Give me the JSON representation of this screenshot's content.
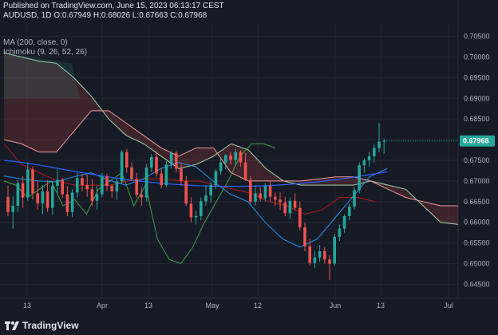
{
  "header": {
    "published": "Published on TradingView.com, June 15, 2023 06:13:17 CEST",
    "symbol": "AUDUSD, 1D",
    "o_label": "O:",
    "o": "0.67949",
    "h_label": "H:",
    "h": "0.68026",
    "l_label": "L:",
    "l": "0.67663",
    "c_label": "C:",
    "c": "0.67968"
  },
  "indicators": [
    "MA (200, close, 0)",
    "Ichimoku (9, 26, 52, 26)"
  ],
  "logo": {
    "text": "TradingView"
  },
  "colors": {
    "background": "#161a25",
    "up": "#26a69a",
    "down": "#ef5350",
    "ma": "#2962ff",
    "tenkan": "#2196f3",
    "kijun": "#b71c1c",
    "chikou": "#43a047",
    "span_a": "#a5d6a7",
    "span_b": "#ef9a9a",
    "price_label_bg": "#26a69a"
  },
  "chart_data": {
    "type": "candlestick",
    "symbol": "AUDUSD",
    "interval": "1D",
    "ylim": [
      0.642,
      0.708
    ],
    "yticks": [
      "0.70500",
      "0.70000",
      "0.69500",
      "0.69000",
      "0.68500",
      "0.68000",
      "0.67500",
      "0.67000",
      "0.66500",
      "0.66000",
      "0.65500",
      "0.65000",
      "0.64500"
    ],
    "xticks": [
      "13",
      "Apr",
      "13",
      "May",
      "12",
      "Jun",
      "13",
      "Jul"
    ],
    "current_price_label": "0.67968",
    "current_price": 0.67968,
    "candles": [
      [
        0.6661,
        0.6689,
        0.6615,
        0.6625
      ],
      [
        0.6625,
        0.6662,
        0.6585,
        0.664
      ],
      [
        0.664,
        0.6702,
        0.6625,
        0.6695
      ],
      [
        0.6695,
        0.6712,
        0.6635,
        0.666
      ],
      [
        0.666,
        0.6745,
        0.6652,
        0.6728
      ],
      [
        0.6728,
        0.6735,
        0.6655,
        0.667
      ],
      [
        0.667,
        0.67,
        0.663,
        0.6646
      ],
      [
        0.6646,
        0.669,
        0.662,
        0.6675
      ],
      [
        0.6675,
        0.6702,
        0.6625,
        0.6635
      ],
      [
        0.6635,
        0.67,
        0.6618,
        0.6688
      ],
      [
        0.6688,
        0.6728,
        0.6672,
        0.6703
      ],
      [
        0.6703,
        0.6708,
        0.666,
        0.6668
      ],
      [
        0.6668,
        0.6688,
        0.6615,
        0.6625
      ],
      [
        0.6625,
        0.668,
        0.6612,
        0.6672
      ],
      [
        0.6672,
        0.672,
        0.666,
        0.6707
      ],
      [
        0.6707,
        0.6717,
        0.6675,
        0.669
      ],
      [
        0.669,
        0.6716,
        0.6662,
        0.668
      ],
      [
        0.668,
        0.6705,
        0.664,
        0.6652
      ],
      [
        0.6652,
        0.6688,
        0.663,
        0.6668
      ],
      [
        0.6668,
        0.672,
        0.666,
        0.6711
      ],
      [
        0.6711,
        0.6718,
        0.6675,
        0.6688
      ],
      [
        0.6688,
        0.6692,
        0.666,
        0.6675
      ],
      [
        0.6675,
        0.6705,
        0.6655,
        0.6699
      ],
      [
        0.6699,
        0.6775,
        0.6692,
        0.677
      ],
      [
        0.677,
        0.6778,
        0.672,
        0.6733
      ],
      [
        0.6733,
        0.6745,
        0.67,
        0.6705
      ],
      [
        0.6705,
        0.672,
        0.666,
        0.6667
      ],
      [
        0.6667,
        0.6685,
        0.664,
        0.666
      ],
      [
        0.666,
        0.6742,
        0.665,
        0.6732
      ],
      [
        0.6732,
        0.6765,
        0.6722,
        0.6758
      ],
      [
        0.6758,
        0.6772,
        0.671,
        0.6718
      ],
      [
        0.6718,
        0.673,
        0.6682,
        0.669
      ],
      [
        0.669,
        0.6748,
        0.6685,
        0.674
      ],
      [
        0.674,
        0.6772,
        0.673,
        0.6768
      ],
      [
        0.6768,
        0.6772,
        0.672,
        0.673
      ],
      [
        0.673,
        0.6742,
        0.669,
        0.67
      ],
      [
        0.67,
        0.6712,
        0.664,
        0.6645
      ],
      [
        0.6645,
        0.666,
        0.66,
        0.6612
      ],
      [
        0.6612,
        0.6628,
        0.6595,
        0.6615
      ],
      [
        0.6615,
        0.666,
        0.6605,
        0.6651
      ],
      [
        0.6651,
        0.669,
        0.664,
        0.6665
      ],
      [
        0.6665,
        0.6698,
        0.6648,
        0.669
      ],
      [
        0.669,
        0.6728,
        0.668,
        0.6724
      ],
      [
        0.6724,
        0.6758,
        0.6715,
        0.6745
      ],
      [
        0.6745,
        0.6765,
        0.6728,
        0.6762
      ],
      [
        0.6762,
        0.677,
        0.674,
        0.6751
      ],
      [
        0.6751,
        0.6778,
        0.674,
        0.677
      ],
      [
        0.677,
        0.6775,
        0.6735,
        0.6745
      ],
      [
        0.6745,
        0.6768,
        0.67,
        0.6702
      ],
      [
        0.6702,
        0.6712,
        0.6645,
        0.665
      ],
      [
        0.665,
        0.669,
        0.664,
        0.667
      ],
      [
        0.667,
        0.6685,
        0.665,
        0.6658
      ],
      [
        0.6658,
        0.6695,
        0.665,
        0.6688
      ],
      [
        0.6688,
        0.67,
        0.665,
        0.6662
      ],
      [
        0.6662,
        0.6672,
        0.664,
        0.6655
      ],
      [
        0.6655,
        0.6672,
        0.663,
        0.6648
      ],
      [
        0.6648,
        0.6662,
        0.6615,
        0.6622
      ],
      [
        0.6622,
        0.666,
        0.6608,
        0.6652
      ],
      [
        0.6652,
        0.667,
        0.663,
        0.6635
      ],
      [
        0.6635,
        0.665,
        0.658,
        0.6588
      ],
      [
        0.6588,
        0.66,
        0.653,
        0.6542
      ],
      [
        0.6542,
        0.656,
        0.6495,
        0.6502
      ],
      [
        0.6502,
        0.653,
        0.649,
        0.6515
      ],
      [
        0.6515,
        0.6545,
        0.6505,
        0.653
      ],
      [
        0.653,
        0.654,
        0.65,
        0.651
      ],
      [
        0.651,
        0.652,
        0.646,
        0.65
      ],
      [
        0.65,
        0.6572,
        0.6495,
        0.6565
      ],
      [
        0.6565,
        0.6595,
        0.6555,
        0.6585
      ],
      [
        0.6585,
        0.662,
        0.6575,
        0.6615
      ],
      [
        0.6615,
        0.6645,
        0.6605,
        0.6638
      ],
      [
        0.6638,
        0.6685,
        0.663,
        0.6678
      ],
      [
        0.6678,
        0.6745,
        0.667,
        0.6738
      ],
      [
        0.6738,
        0.6755,
        0.672,
        0.675
      ],
      [
        0.675,
        0.677,
        0.6735,
        0.676
      ],
      [
        0.676,
        0.679,
        0.6745,
        0.678
      ],
      [
        0.678,
        0.684,
        0.677,
        0.6795
      ],
      [
        0.6795,
        0.6803,
        0.6766,
        0.6797
      ]
    ],
    "series": [
      {
        "name": "MA (200, close, 0)",
        "values": [
          0.675,
          0.6745,
          0.6738,
          0.673,
          0.6722,
          0.6715,
          0.6708,
          0.6702,
          0.6697,
          0.6693,
          0.669,
          0.6688,
          0.6687,
          0.6687,
          0.6688,
          0.669,
          0.6693,
          0.6697,
          0.6702,
          0.6708,
          0.6715,
          0.6722
        ]
      },
      {
        "name": "Tenkan",
        "values": [
          0.6712,
          0.6705,
          0.67,
          0.6698,
          0.671,
          0.672,
          0.6702,
          0.669,
          0.6705,
          0.673,
          0.6745,
          0.6735,
          0.67,
          0.6668,
          0.665,
          0.66,
          0.656,
          0.654,
          0.656,
          0.661,
          0.666,
          0.671,
          0.673
        ]
      },
      {
        "name": "Kijun",
        "values": [
          0.679,
          0.674,
          0.672,
          0.67,
          0.669,
          0.669,
          0.669,
          0.67,
          0.6705,
          0.6705,
          0.67,
          0.67,
          0.669,
          0.668,
          0.667,
          0.665,
          0.664,
          0.662,
          0.663,
          0.666,
          0.666,
          0.665
        ]
      },
      {
        "name": "Chikou",
        "values": [
          0.67,
          0.669,
          0.666,
          0.668,
          0.67,
          0.664,
          0.6655,
          0.662,
          0.668,
          0.67,
          0.672,
          0.664,
          0.669,
          0.656,
          0.651,
          0.65,
          0.654,
          0.66,
          0.665,
          0.67,
          0.676,
          0.679,
          0.679,
          0.678
        ]
      }
    ]
  }
}
